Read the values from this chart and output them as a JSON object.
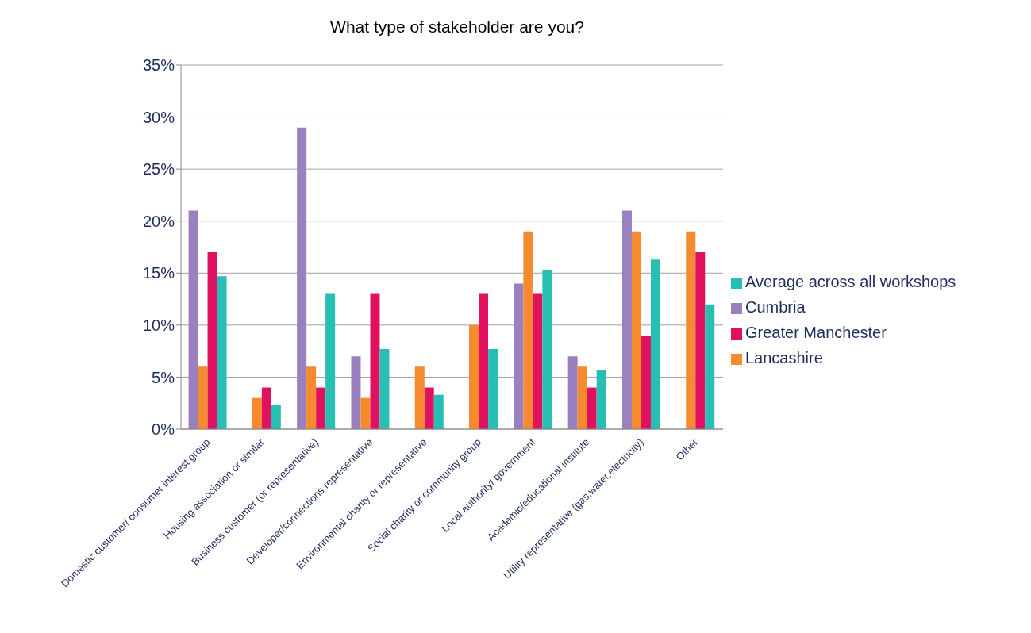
{
  "chart_data": {
    "type": "bar",
    "title": "What type of stakeholder are you?",
    "categories": [
      "Domestic customer/ consumer interest group",
      "Housing association or similar",
      "Business customer (or representative)",
      "Developer/connections representative",
      "Environmental charity or representative",
      "Social charity or community group",
      "Local authority/ government",
      "Academic/educational institute",
      "Utility representative (gas,water,electricity)",
      "Other"
    ],
    "series": [
      {
        "name": "Cumbria",
        "color": "#9b80c0",
        "values": [
          21,
          0,
          29,
          7,
          0,
          0,
          14,
          7,
          21,
          0
        ]
      },
      {
        "name": "Lancashire",
        "color": "#f58a2e",
        "values": [
          6,
          3,
          6,
          3,
          6,
          10,
          19,
          6,
          19,
          19
        ]
      },
      {
        "name": "Greater Manchester",
        "color": "#e0115f",
        "values": [
          17,
          4,
          4,
          13,
          4,
          13,
          13,
          4,
          9,
          17
        ]
      },
      {
        "name": "Average across all workshops",
        "color": "#27bfb3",
        "values": [
          14.7,
          2.3,
          13,
          7.7,
          3.3,
          7.7,
          15.3,
          5.7,
          16.3,
          12
        ]
      }
    ],
    "ylim": [
      0,
      35
    ],
    "yticks": [
      {
        "value": 0,
        "label": "0%"
      },
      {
        "value": 5,
        "label": "5%"
      },
      {
        "value": 10,
        "label": "10%"
      },
      {
        "value": 15,
        "label": "15%"
      },
      {
        "value": 20,
        "label": "20%"
      },
      {
        "value": 25,
        "label": "25%"
      },
      {
        "value": 30,
        "label": "30%"
      },
      {
        "value": 35,
        "label": "35%"
      }
    ],
    "grid": "y",
    "legend": "right"
  }
}
